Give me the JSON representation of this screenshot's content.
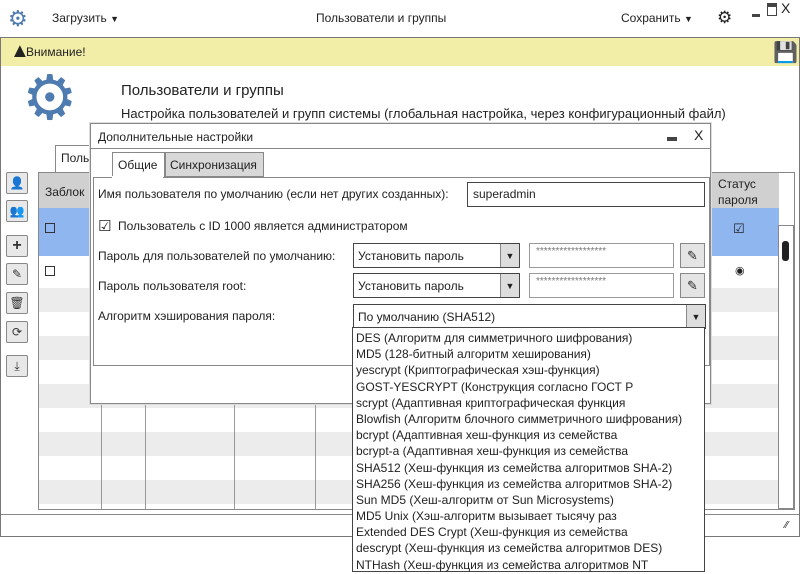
{
  "topbar": {
    "load_label": "Загрузить",
    "title": "Пользователи и группы",
    "save_label": "Сохранить"
  },
  "warning": {
    "text": "Внимание!"
  },
  "header": {
    "title": "Пользователи и группы",
    "subtitle": "Настройка пользователей и групп системы (глобальная настройка, через конфигурационный файл)"
  },
  "main_tab": {
    "label": "Поль"
  },
  "table": {
    "headers": {
      "locked": "Заблок",
      "status_line1": "Статус",
      "status_line2": "пароля"
    }
  },
  "dialog": {
    "title": "Дополнительные настройки",
    "tabs": [
      {
        "label": "Общие"
      },
      {
        "label": "Синхронизация"
      }
    ],
    "username_label": "Имя пользователя по умолчанию (если нет других созданных):",
    "username_value": "superadmin",
    "admin_checkbox_label": "Пользователь с ID 1000 является администратором",
    "admin_checked": true,
    "default_pass_label": "Пароль для пользователей по умолчанию:",
    "default_pass_mode": "Установить пароль",
    "default_pass_value": "******************",
    "root_pass_label": "Пароль пользователя root:",
    "root_pass_mode": "Установить пароль",
    "root_pass_value": "******************",
    "hash_label": "Алгоритм хэширования пароля:",
    "hash_value": "По умолчанию (SHA512)",
    "hash_options": [
      "DES (Алгоритм для симметричного шифрования)",
      "MD5 (128-битный алгоритм хеширования)",
      "yescrypt (Криптографическая хэш-функция)",
      "GOST-YESCRYPT (Конструкция согласно ГОСТ Р",
      "scrypt (Адаптивная криптографическая функция",
      "Blowfish (Алгоритм блочного симметричного шифрования)",
      "bcrypt (Адаптивная хеш-функция из семейства",
      "bcrypt-a (Адаптивная хеш-функция из семейства",
      "SHA512 (Хеш-функция из семейства алгоритмов SHA-2)",
      "SHA256 (Хеш-функция из семейства алгоритмов SHA-2)",
      "Sun MD5 (Хеш-алгоритм от Sun Microsystems)",
      "MD5 Unix (Хэш-алгоритм вызывает тысячу раз",
      "Extended DES Crypt (Хеш-функция из семейства",
      "descrypt (Хеш-функция из семейства алгоритмов DES)",
      "NTHash (Хеш-функция из семейства алгоритмов NT"
    ]
  },
  "colors": {
    "warning_bg": "#f2eea8",
    "selected_row": "#8fb6ef",
    "accent": "#4e7bb0"
  }
}
